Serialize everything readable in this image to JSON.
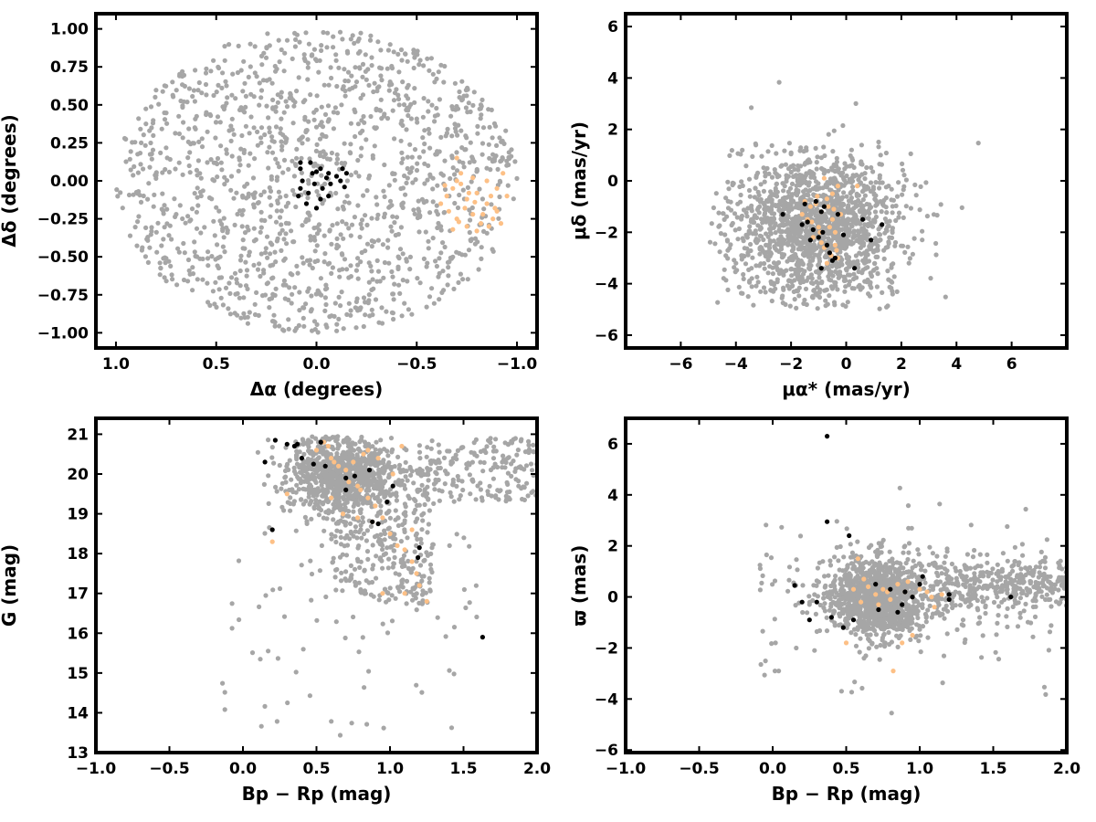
{
  "colors": {
    "field": "#a6a6a6",
    "member_a": "#000000",
    "member_b": "#fdc086"
  },
  "chart_data": [
    {
      "type": "scatter",
      "id": "sky",
      "xlabel": "Δα (degrees)",
      "ylabel": "Δδ (degrees)",
      "xlim": [
        1.1,
        -1.1
      ],
      "ylim": [
        -1.1,
        1.1
      ],
      "xticks": [
        "1.0",
        "0.5",
        "0.0",
        "−0.5",
        "−1.0"
      ],
      "yticks": [
        "−1.00",
        "−0.75",
        "−0.50",
        "−0.25",
        "0.00",
        "0.25",
        "0.50",
        "0.75",
        "1.00"
      ],
      "xtick_values": [
        1.0,
        0.5,
        0.0,
        -0.5,
        -1.0
      ],
      "ytick_values": [
        -1.0,
        -0.75,
        -0.5,
        -0.25,
        0.0,
        0.25,
        0.5,
        0.75,
        1.0
      ],
      "series": [
        {
          "color": "field",
          "count": 1400,
          "distribution": "uniform-disk",
          "center": [
            0,
            0
          ],
          "radius": 1.0
        },
        {
          "color": "member_b",
          "points": [
            [
              -0.7,
              0.15
            ],
            [
              -0.72,
              0.05
            ],
            [
              -0.68,
              -0.05
            ],
            [
              -0.65,
              -0.1
            ],
            [
              -0.75,
              -0.12
            ],
            [
              -0.8,
              -0.08
            ],
            [
              -0.85,
              -0.15
            ],
            [
              -0.9,
              -0.2
            ],
            [
              -0.78,
              -0.22
            ],
            [
              -0.7,
              -0.25
            ],
            [
              -0.82,
              -0.28
            ],
            [
              -0.88,
              -0.25
            ],
            [
              -0.92,
              -0.28
            ],
            [
              -0.75,
              -0.3
            ],
            [
              -0.68,
              -0.32
            ],
            [
              -0.72,
              -0.02
            ],
            [
              -0.78,
              0.02
            ],
            [
              -0.85,
              0.0
            ],
            [
              -0.9,
              -0.05
            ],
            [
              -0.95,
              -0.1
            ],
            [
              -0.62,
              -0.15
            ],
            [
              -0.66,
              -0.2
            ],
            [
              -0.74,
              -0.18
            ],
            [
              -0.83,
              -0.22
            ],
            [
              -0.87,
              -0.1
            ],
            [
              -0.93,
              0.05
            ],
            [
              -0.8,
              -0.33
            ],
            [
              -0.86,
              -0.3
            ],
            [
              -0.7,
              0.0
            ],
            [
              -0.76,
              -0.08
            ],
            [
              -0.89,
              -0.18
            ],
            [
              -0.64,
              -0.03
            ],
            [
              -0.71,
              -0.27
            ],
            [
              -0.79,
              -0.14
            ]
          ]
        },
        {
          "color": "member_a",
          "points": [
            [
              0.08,
              0.12
            ],
            [
              0.08,
              0.08
            ],
            [
              0.07,
              0.0
            ],
            [
              0.08,
              -0.05
            ],
            [
              0.09,
              -0.1
            ],
            [
              0.05,
              -0.15
            ],
            [
              0.02,
              0.05
            ],
            [
              0.01,
              -0.02
            ],
            [
              -0.02,
              0.08
            ],
            [
              -0.05,
              0.02
            ],
            [
              -0.07,
              -0.02
            ],
            [
              -0.06,
              -0.1
            ],
            [
              -0.03,
              -0.05
            ],
            [
              0.03,
              0.12
            ],
            [
              0.0,
              0.06
            ],
            [
              -0.1,
              0.03
            ],
            [
              -0.12,
              0.0
            ],
            [
              -0.15,
              0.05
            ],
            [
              -0.14,
              -0.04
            ],
            [
              -0.06,
              0.05
            ],
            [
              0.04,
              -0.08
            ],
            [
              -0.02,
              -0.12
            ],
            [
              0.0,
              -0.18
            ],
            [
              -0.13,
              0.08
            ]
          ]
        }
      ]
    },
    {
      "type": "scatter",
      "id": "proper-motion",
      "xlabel": "μα* (mas/yr)",
      "ylabel": "μδ (mas/yr)",
      "xlim": [
        -8,
        8
      ],
      "ylim": [
        -6.5,
        6.5
      ],
      "xticks": [
        "−6",
        "−4",
        "−2",
        "0",
        "2",
        "4",
        "6"
      ],
      "yticks": [
        "−6",
        "−4",
        "−2",
        "0",
        "2",
        "4",
        "6"
      ],
      "xtick_values": [
        -6,
        -4,
        -2,
        0,
        2,
        4,
        6
      ],
      "ytick_values": [
        -6,
        -4,
        -2,
        0,
        2,
        4,
        6
      ],
      "series": [
        {
          "color": "field",
          "count": 1600,
          "distribution": "gaussian-clipped",
          "center": [
            -1.0,
            -1.8
          ],
          "sigma": [
            1.6,
            1.5
          ],
          "clip_x": [
            -5.0,
            4.8
          ],
          "clip_y": [
            -5.0,
            4.6
          ]
        },
        {
          "color": "member_b",
          "points": [
            [
              -1.5,
              -0.8
            ],
            [
              -1.3,
              -1.0
            ],
            [
              -1.1,
              -0.9
            ],
            [
              -0.9,
              -1.2
            ],
            [
              -0.7,
              -0.7
            ],
            [
              -0.5,
              -1.5
            ],
            [
              -0.4,
              -2.5
            ],
            [
              -0.6,
              -2.8
            ],
            [
              -0.3,
              -3.0
            ],
            [
              -0.8,
              -2.6
            ],
            [
              -1.0,
              -1.8
            ],
            [
              -1.2,
              -2.2
            ],
            [
              -0.5,
              -0.5
            ],
            [
              -0.2,
              -1.3
            ],
            [
              -0.6,
              -1.8
            ],
            [
              -0.9,
              -2.4
            ],
            [
              -0.7,
              -3.2
            ],
            [
              -0.4,
              -2.0
            ],
            [
              -1.4,
              -1.5
            ],
            [
              -0.3,
              -0.2
            ],
            [
              -0.8,
              0.1
            ],
            [
              -0.55,
              -2.9
            ],
            [
              -1.05,
              -0.6
            ],
            [
              -0.45,
              -1.1
            ],
            [
              0.4,
              -0.2
            ],
            [
              -1.6,
              -1.3
            ],
            [
              -0.35,
              -2.7
            ],
            [
              -0.65,
              -1.0
            ],
            [
              -0.95,
              -2.0
            ],
            [
              -1.25,
              -1.6
            ]
          ]
        },
        {
          "color": "member_a",
          "points": [
            [
              -2.3,
              -1.3
            ],
            [
              -1.6,
              -1.7
            ],
            [
              -1.4,
              -1.6
            ],
            [
              -1.3,
              -2.3
            ],
            [
              -1.0,
              -2.2
            ],
            [
              -0.9,
              -1.2
            ],
            [
              -0.8,
              -1.0
            ],
            [
              -0.85,
              -2.0
            ],
            [
              -0.7,
              -2.5
            ],
            [
              -0.5,
              -3.1
            ],
            [
              -0.4,
              -3.0
            ],
            [
              -0.9,
              -3.4
            ],
            [
              -0.1,
              -2.1
            ],
            [
              0.3,
              -3.4
            ],
            [
              0.6,
              -1.5
            ],
            [
              1.3,
              -1.7
            ],
            [
              -0.6,
              -2.8
            ],
            [
              0.9,
              -2.3
            ],
            [
              -1.1,
              -0.8
            ],
            [
              -1.5,
              -0.9
            ],
            [
              -0.3,
              -1.3
            ],
            [
              -1.2,
              -1.9
            ]
          ]
        }
      ]
    },
    {
      "type": "scatter",
      "id": "cmd",
      "xlabel": "Bp − Rp (mag)",
      "ylabel": "G (mag)",
      "xlim": [
        -1.0,
        2.0
      ],
      "ylim": [
        13.0,
        21.4
      ],
      "yinverted": false,
      "xticks": [
        "−1.0",
        "−0.5",
        "0.0",
        "0.5",
        "1.0",
        "1.5",
        "2.0"
      ],
      "yticks": [
        "13",
        "14",
        "15",
        "16",
        "17",
        "18",
        "19",
        "20",
        "21"
      ],
      "xtick_values": [
        -1.0,
        -0.5,
        0.0,
        0.5,
        1.0,
        1.5,
        2.0
      ],
      "ytick_values": [
        13,
        14,
        15,
        16,
        17,
        18,
        19,
        20,
        21
      ],
      "series": [
        {
          "color": "field",
          "count": 1500,
          "distribution": "cmd-field"
        },
        {
          "color": "member_b",
          "points": [
            [
              0.55,
              20.8
            ],
            [
              0.58,
              20.7
            ],
            [
              0.6,
              20.4
            ],
            [
              0.62,
              20.3
            ],
            [
              0.65,
              20.2
            ],
            [
              0.7,
              20.1
            ],
            [
              0.72,
              19.8
            ],
            [
              0.78,
              19.7
            ],
            [
              0.8,
              19.6
            ],
            [
              0.85,
              19.4
            ],
            [
              0.9,
              19.2
            ],
            [
              0.95,
              18.9
            ],
            [
              1.0,
              18.5
            ],
            [
              1.05,
              18.2
            ],
            [
              1.1,
              18.1
            ],
            [
              1.15,
              17.8
            ],
            [
              1.18,
              17.5
            ],
            [
              1.2,
              17.2
            ],
            [
              1.1,
              17.0
            ],
            [
              0.95,
              17.0
            ],
            [
              1.25,
              16.8
            ],
            [
              0.3,
              19.5
            ],
            [
              0.2,
              18.3
            ],
            [
              0.5,
              20.6
            ],
            [
              0.75,
              20.3
            ],
            [
              0.85,
              20.6
            ],
            [
              0.92,
              20.4
            ],
            [
              1.02,
              20.0
            ],
            [
              1.08,
              20.7
            ],
            [
              0.68,
              19.0
            ],
            [
              0.78,
              18.9
            ],
            [
              0.88,
              18.8
            ],
            [
              1.15,
              18.6
            ],
            [
              0.6,
              19.4
            ],
            [
              0.82,
              20.5
            ]
          ]
        },
        {
          "color": "member_a",
          "points": [
            [
              0.22,
              20.85
            ],
            [
              0.3,
              20.75
            ],
            [
              0.35,
              20.7
            ],
            [
              0.37,
              20.75
            ],
            [
              0.53,
              20.8
            ],
            [
              0.15,
              20.3
            ],
            [
              0.4,
              20.4
            ],
            [
              0.48,
              20.25
            ],
            [
              0.56,
              20.2
            ],
            [
              0.7,
              19.9
            ],
            [
              0.76,
              19.95
            ],
            [
              0.86,
              20.1
            ],
            [
              0.7,
              19.6
            ],
            [
              0.98,
              19.3
            ],
            [
              1.02,
              19.7
            ],
            [
              0.88,
              18.8
            ],
            [
              0.92,
              18.75
            ],
            [
              1.2,
              18.15
            ],
            [
              1.19,
              17.9
            ],
            [
              0.2,
              18.6
            ],
            [
              1.63,
              15.9
            ]
          ]
        }
      ]
    },
    {
      "type": "scatter",
      "id": "parallax",
      "xlabel": "Bp − Rp (mag)",
      "ylabel": "ϖ (mas)",
      "xlim": [
        -1.0,
        2.0
      ],
      "ylim": [
        -6.1,
        7.0
      ],
      "xticks": [
        "−1.0",
        "−0.5",
        "0.0",
        "0.5",
        "1.0",
        "1.5",
        "2.0"
      ],
      "yticks": [
        "−6",
        "−4",
        "−2",
        "0",
        "2",
        "4",
        "6"
      ],
      "xtick_values": [
        -1.0,
        -0.5,
        0.0,
        0.5,
        1.0,
        1.5,
        2.0
      ],
      "ytick_values": [
        -6,
        -4,
        -2,
        0,
        2,
        4,
        6
      ],
      "series": [
        {
          "color": "field",
          "count": 1700,
          "distribution": "parallax-field"
        },
        {
          "color": "member_b",
          "points": [
            [
              0.55,
              0.3
            ],
            [
              0.6,
              -0.2
            ],
            [
              0.65,
              0.4
            ],
            [
              0.7,
              0.1
            ],
            [
              0.75,
              0.3
            ],
            [
              0.8,
              -0.1
            ],
            [
              0.85,
              0.5
            ],
            [
              0.9,
              0.2
            ],
            [
              0.95,
              0.0
            ],
            [
              1.0,
              0.3
            ],
            [
              1.05,
              0.2
            ],
            [
              1.1,
              -0.4
            ],
            [
              0.5,
              -1.8
            ],
            [
              0.88,
              -1.8
            ],
            [
              0.82,
              -2.9
            ],
            [
              0.95,
              -1.5
            ],
            [
              0.58,
              1.5
            ],
            [
              1.15,
              0.1
            ],
            [
              0.72,
              -0.3
            ],
            [
              0.62,
              0.7
            ],
            [
              0.78,
              0.2
            ],
            [
              0.92,
              0.6
            ],
            [
              1.08,
              0.0
            ]
          ]
        },
        {
          "color": "member_a",
          "points": [
            [
              0.37,
              6.3
            ],
            [
              0.37,
              2.95
            ],
            [
              0.52,
              2.4
            ],
            [
              0.15,
              0.45
            ],
            [
              0.2,
              -0.2
            ],
            [
              0.25,
              -0.9
            ],
            [
              0.3,
              -0.2
            ],
            [
              0.4,
              -0.8
            ],
            [
              0.48,
              -1.2
            ],
            [
              0.55,
              -0.9
            ],
            [
              0.7,
              0.5
            ],
            [
              0.72,
              -0.5
            ],
            [
              0.8,
              0.3
            ],
            [
              0.85,
              -0.6
            ],
            [
              0.88,
              -0.3
            ],
            [
              0.9,
              0.2
            ],
            [
              0.95,
              0.0
            ],
            [
              1.0,
              0.5
            ],
            [
              1.02,
              0.8
            ],
            [
              1.2,
              -0.1
            ],
            [
              1.2,
              0.1
            ],
            [
              1.62,
              0.0
            ]
          ]
        }
      ]
    }
  ]
}
